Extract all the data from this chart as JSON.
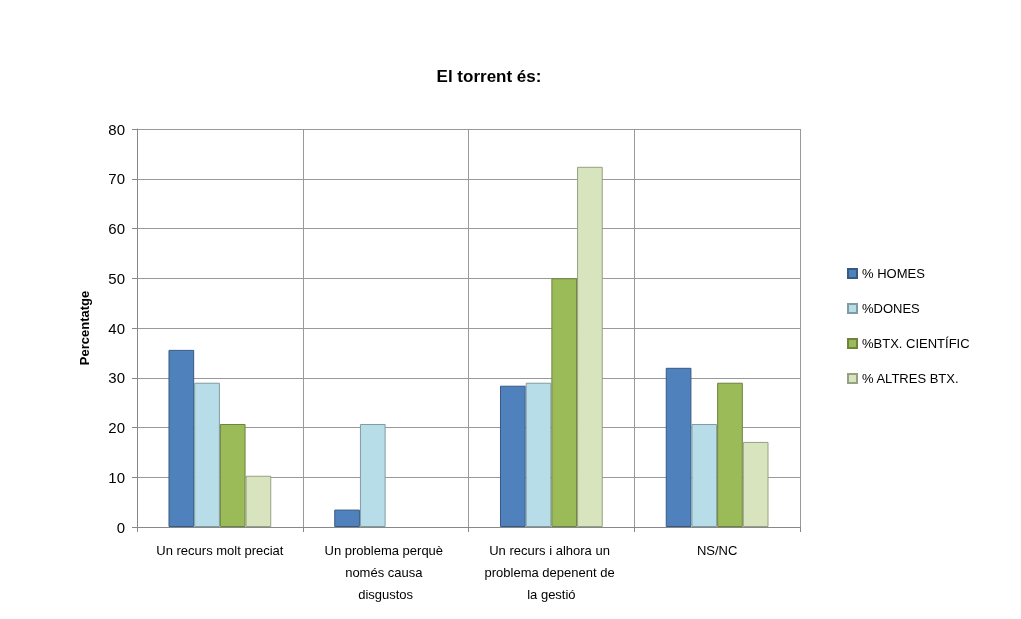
{
  "chart_data": {
    "type": "bar",
    "title": "El torrent és:",
    "ylabel": "Percentatge",
    "categories": [
      "Un recurs molt preciat",
      "Un problema perquè només causa disgustos",
      "Un recurs i alhora un problema depenent de la gestió",
      "NS/NC"
    ],
    "series": [
      {
        "name": "% HOMES",
        "color": "#4f81bd",
        "values": [
          35.6,
          3.5,
          28.4,
          32
        ]
      },
      {
        "name": "%DONES",
        "color": "#b7dde8",
        "values": [
          29,
          20.7,
          29,
          20.7
        ]
      },
      {
        "name": "%BTX. CIENTÍFIC",
        "color": "#9bbb59",
        "values": [
          20.7,
          0,
          50,
          29
        ]
      },
      {
        "name": "% ALTRES BTX.",
        "color": "#d7e4bd",
        "values": [
          10.3,
          0,
          72.4,
          17.1
        ]
      }
    ],
    "ylim": [
      0,
      80
    ],
    "yticks": [
      0,
      10,
      20,
      30,
      40,
      50,
      60,
      70,
      80
    ],
    "grid": true,
    "legend": "right"
  }
}
